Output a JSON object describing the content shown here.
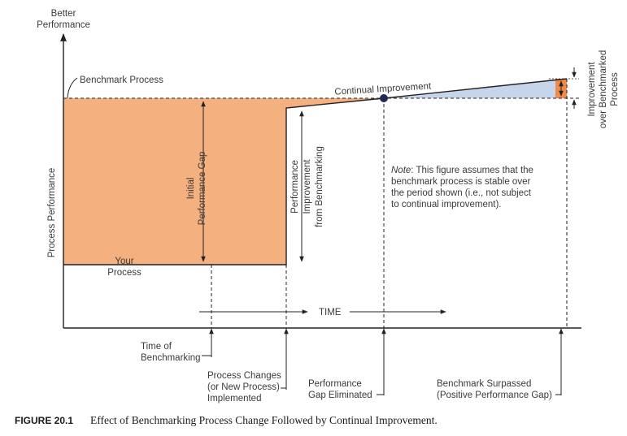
{
  "colors": {
    "orange_fill": "#f4b07f",
    "orange_dark": "#f08a4b",
    "blue_fill": "#c7d5ea",
    "dot": "#1f2a5c",
    "line": "#222222"
  },
  "axes": {
    "y_top_label": [
      "Better",
      "Performance"
    ],
    "y_axis_label": "Process Performance",
    "time_label": "TIME"
  },
  "labels": {
    "benchmark_process": "Benchmark Process",
    "continual_improvement": "Continual Improvement",
    "initial_gap": [
      "Initial",
      "Performance Gap"
    ],
    "performance_improvement": [
      "Performance",
      "Improvement",
      "from Benchmarking"
    ],
    "improvement_over_benchmarked": [
      "Improvement",
      "over Benchmarked",
      "Process"
    ],
    "your_process": [
      "Your",
      "Process"
    ]
  },
  "note": {
    "prefix": "Note",
    "lines": [
      ": This figure assumes that the",
      "benchmark process is stable over",
      "the period shown (i.e., not subject",
      "to continual improvement)."
    ]
  },
  "events": {
    "time_of_benchmarking": [
      "Time of",
      "Benchmarking"
    ],
    "process_changes": [
      "Process Changes",
      "(or New Process)",
      "Implemented"
    ],
    "gap_eliminated": [
      "Performance",
      "Gap Eliminated"
    ],
    "benchmark_surpassed": [
      "Benchmark Surpassed",
      "(Positive Performance Gap)"
    ]
  },
  "caption": {
    "number": "FIGURE 20.1",
    "text": "Effect of Benchmarking Process Change Followed by Continual Improvement."
  }
}
